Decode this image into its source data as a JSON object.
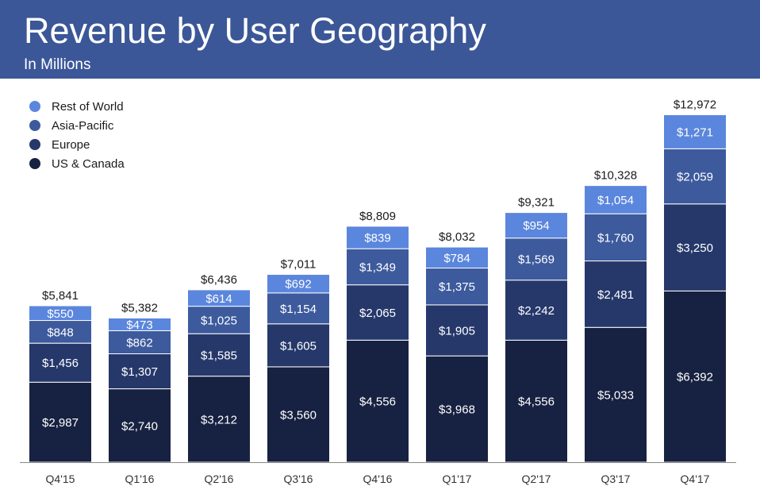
{
  "header": {
    "title": "Revenue by User Geography",
    "subtitle": "In Millions"
  },
  "chart_data": {
    "type": "bar",
    "stacked": true,
    "title": "Revenue by User Geography",
    "subtitle": "In Millions",
    "legend_position": "top-left",
    "grid": false,
    "ylim": [
      0,
      13500
    ],
    "categories": [
      "Q4'15",
      "Q1'16",
      "Q2'16",
      "Q3'16",
      "Q4'16",
      "Q1'17",
      "Q2'17",
      "Q3'17",
      "Q4'17"
    ],
    "series": [
      {
        "name": "US & Canada",
        "color": "#172141",
        "values": [
          2987,
          2740,
          3212,
          3560,
          4556,
          3968,
          4556,
          5033,
          6392
        ],
        "labels": [
          "$2,987",
          "$2,740",
          "$3,212",
          "$3,560",
          "$4,556",
          "$3,968",
          "$4,556",
          "$5,033",
          "$6,392"
        ]
      },
      {
        "name": "Europe",
        "color": "#26386a",
        "values": [
          1456,
          1307,
          1585,
          1605,
          2065,
          1905,
          2242,
          2481,
          3250
        ],
        "labels": [
          "$1,456",
          "$1,307",
          "$1,585",
          "$1,605",
          "$2,065",
          "$1,905",
          "$2,242",
          "$2,481",
          "$3,250"
        ]
      },
      {
        "name": "Asia-Pacific",
        "color": "#3d5a9d",
        "values": [
          848,
          862,
          1025,
          1154,
          1349,
          1375,
          1569,
          1760,
          2059
        ],
        "labels": [
          "$848",
          "$862",
          "$1,025",
          "$1,154",
          "$1,349",
          "$1,375",
          "$1,569",
          "$1,760",
          "$2,059"
        ]
      },
      {
        "name": "Rest of World",
        "color": "#5b86dd",
        "values": [
          550,
          473,
          614,
          692,
          839,
          784,
          954,
          1054,
          1271
        ],
        "labels": [
          "$550",
          "$473",
          "$614",
          "$692",
          "$839",
          "$784",
          "$954",
          "$1,054",
          "$1,271"
        ]
      }
    ],
    "totals": [
      5841,
      5382,
      6436,
      7011,
      8809,
      8032,
      9321,
      10328,
      12972
    ],
    "total_labels": [
      "$5,841",
      "$5,382",
      "$6,436",
      "$7,011",
      "$8,809",
      "$8,032",
      "$9,321",
      "$10,328",
      "$12,972"
    ]
  }
}
